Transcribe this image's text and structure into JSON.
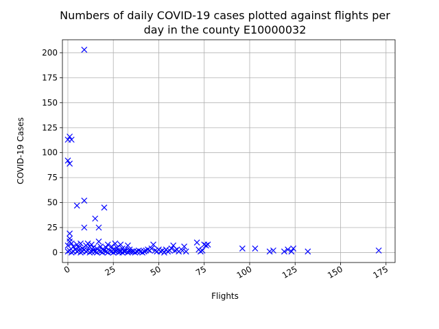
{
  "chart_data": {
    "type": "scatter",
    "title": [
      "Numbers of daily COVID-19 cases plotted against flights per",
      "day in the county E10000032"
    ],
    "xlabel": "Flights",
    "ylabel": "COVID-19 Cases",
    "xlim": [
      -3,
      180
    ],
    "ylim": [
      -10,
      213
    ],
    "xticks": [
      0,
      25,
      50,
      75,
      100,
      125,
      150,
      175
    ],
    "xtick_labels": [
      "0",
      "25",
      "50",
      "75",
      "100",
      "125",
      "150",
      "175"
    ],
    "yticks": [
      0,
      25,
      50,
      75,
      100,
      125,
      150,
      175,
      200
    ],
    "ytick_labels": [
      "0",
      "25",
      "50",
      "75",
      "100",
      "125",
      "150",
      "175",
      "200"
    ],
    "grid": true,
    "marker": "x",
    "color": "#0000ff",
    "series": [
      {
        "points": [
          [
            9,
            203
          ],
          [
            1,
            116
          ],
          [
            0,
            113
          ],
          [
            2,
            113
          ],
          [
            0,
            92
          ],
          [
            1,
            89
          ],
          [
            9,
            52
          ],
          [
            5,
            47
          ],
          [
            20,
            45
          ],
          [
            15,
            34
          ],
          [
            9,
            25
          ],
          [
            17,
            25
          ],
          [
            1,
            19
          ],
          [
            1,
            14
          ],
          [
            1,
            11
          ],
          [
            2,
            9
          ],
          [
            0,
            7
          ],
          [
            3,
            6
          ],
          [
            5,
            8
          ],
          [
            6,
            5
          ],
          [
            7,
            9
          ],
          [
            8,
            4
          ],
          [
            10,
            7
          ],
          [
            11,
            9
          ],
          [
            12,
            6
          ],
          [
            13,
            8
          ],
          [
            14,
            5
          ],
          [
            16,
            4
          ],
          [
            17,
            11
          ],
          [
            18,
            6
          ],
          [
            19,
            3
          ],
          [
            21,
            5
          ],
          [
            22,
            8
          ],
          [
            24,
            6
          ],
          [
            25,
            3
          ],
          [
            26,
            9
          ],
          [
            27,
            5
          ],
          [
            28,
            2
          ],
          [
            29,
            8
          ],
          [
            30,
            4
          ],
          [
            31,
            2
          ],
          [
            33,
            7
          ],
          [
            34,
            3
          ],
          [
            35,
            1
          ],
          [
            0,
            1
          ],
          [
            1,
            2
          ],
          [
            2,
            0
          ],
          [
            3,
            1
          ],
          [
            4,
            3
          ],
          [
            5,
            1
          ],
          [
            6,
            2
          ],
          [
            7,
            0
          ],
          [
            8,
            1
          ],
          [
            9,
            3
          ],
          [
            10,
            1
          ],
          [
            11,
            2
          ],
          [
            12,
            0
          ],
          [
            13,
            1
          ],
          [
            14,
            2
          ],
          [
            15,
            1
          ],
          [
            16,
            0
          ],
          [
            17,
            2
          ],
          [
            18,
            1
          ],
          [
            19,
            0
          ],
          [
            20,
            2
          ],
          [
            21,
            1
          ],
          [
            22,
            0
          ],
          [
            23,
            2
          ],
          [
            24,
            1
          ],
          [
            25,
            0
          ],
          [
            26,
            1
          ],
          [
            27,
            2
          ],
          [
            28,
            0
          ],
          [
            29,
            1
          ],
          [
            30,
            0
          ],
          [
            31,
            1
          ],
          [
            32,
            2
          ],
          [
            33,
            0
          ],
          [
            34,
            1
          ],
          [
            36,
            1
          ],
          [
            37,
            0
          ],
          [
            38,
            1
          ],
          [
            39,
            2
          ],
          [
            40,
            1
          ],
          [
            41,
            0
          ],
          [
            42,
            1
          ],
          [
            43,
            2
          ],
          [
            44,
            3
          ],
          [
            45,
            2
          ],
          [
            46,
            4
          ],
          [
            47,
            8
          ],
          [
            48,
            2
          ],
          [
            49,
            1
          ],
          [
            50,
            3
          ],
          [
            51,
            1
          ],
          [
            52,
            2
          ],
          [
            53,
            0
          ],
          [
            54,
            3
          ],
          [
            55,
            1
          ],
          [
            56,
            2
          ],
          [
            57,
            4
          ],
          [
            58,
            7
          ],
          [
            59,
            2
          ],
          [
            60,
            3
          ],
          [
            61,
            1
          ],
          [
            63,
            2
          ],
          [
            64,
            6
          ],
          [
            65,
            1
          ],
          [
            71,
            10
          ],
          [
            72,
            3
          ],
          [
            73,
            1
          ],
          [
            74,
            2
          ],
          [
            75,
            8
          ],
          [
            76,
            7
          ],
          [
            77,
            8
          ],
          [
            96,
            4
          ],
          [
            103,
            4
          ],
          [
            111,
            1
          ],
          [
            113,
            2
          ],
          [
            119,
            1
          ],
          [
            121,
            3
          ],
          [
            123,
            1
          ],
          [
            124,
            4
          ],
          [
            132,
            1
          ],
          [
            171,
            2
          ]
        ]
      }
    ]
  }
}
